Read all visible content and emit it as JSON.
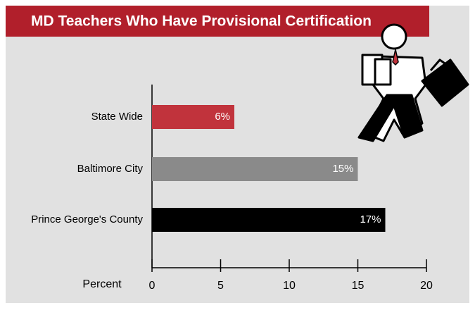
{
  "chart_data": {
    "type": "barh",
    "title": "MD Teachers Who Have Provisional Certification",
    "categories": [
      "State Wide",
      "Baltimore City",
      "Prince George's County"
    ],
    "values": [
      6,
      15,
      17
    ],
    "value_labels": [
      "6%",
      "15%",
      "17%"
    ],
    "colors": [
      "#c1333c",
      "#8a8a8a",
      "#000000"
    ],
    "x_label": "Percent",
    "xlim": [
      0,
      20
    ],
    "xticks": [
      0,
      5,
      10,
      15,
      20
    ]
  }
}
